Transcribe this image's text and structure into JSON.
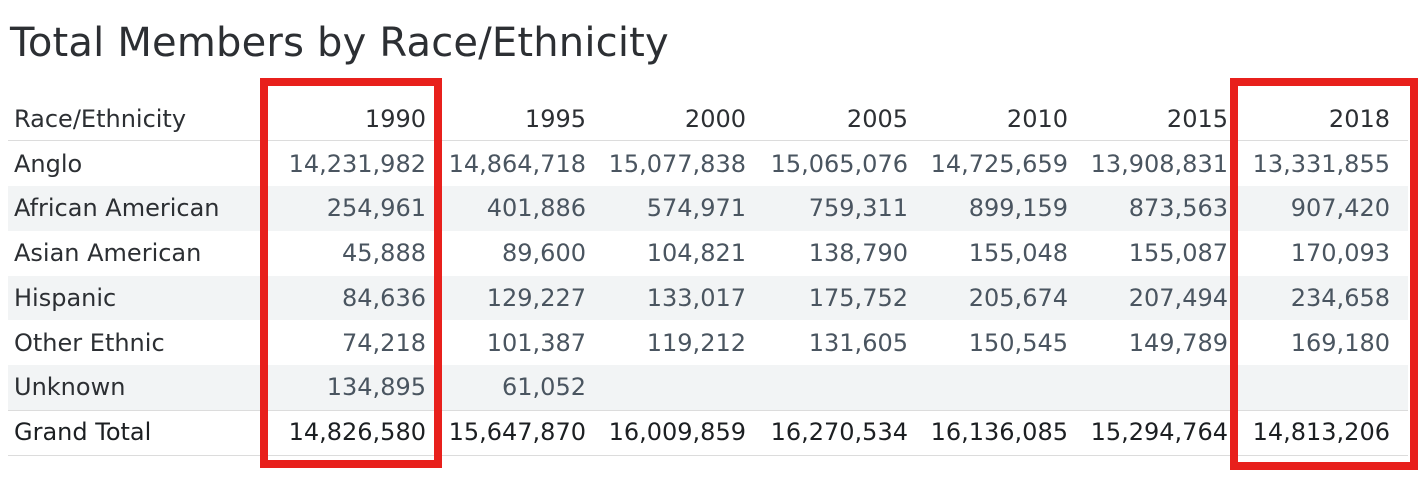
{
  "chart_data": {
    "type": "table",
    "title": "Total Members by Race/Ethnicity",
    "row_header_label": "Race/Ethnicity",
    "columns": [
      "1990",
      "1995",
      "2000",
      "2005",
      "2010",
      "2015",
      "2018"
    ],
    "rows": [
      {
        "label": "Anglo",
        "values": [
          "14,231,982",
          "14,864,718",
          "15,077,838",
          "15,065,076",
          "14,725,659",
          "13,908,831",
          "13,331,855"
        ]
      },
      {
        "label": "African American",
        "values": [
          "254,961",
          "401,886",
          "574,971",
          "759,311",
          "899,159",
          "873,563",
          "907,420"
        ]
      },
      {
        "label": "Asian American",
        "values": [
          "45,888",
          "89,600",
          "104,821",
          "138,790",
          "155,048",
          "155,087",
          "170,093"
        ]
      },
      {
        "label": "Hispanic",
        "values": [
          "84,636",
          "129,227",
          "133,017",
          "175,752",
          "205,674",
          "207,494",
          "234,658"
        ]
      },
      {
        "label": "Other Ethnic",
        "values": [
          "74,218",
          "101,387",
          "119,212",
          "131,605",
          "150,545",
          "149,789",
          "169,180"
        ]
      },
      {
        "label": "Unknown",
        "values": [
          "134,895",
          "61,052",
          "",
          "",
          "",
          "",
          ""
        ]
      }
    ],
    "total_row": {
      "label": "Grand Total",
      "values": [
        "14,826,580",
        "15,647,870",
        "16,009,859",
        "16,270,534",
        "16,136,085",
        "15,294,764",
        "14,813,206"
      ]
    },
    "highlighted_columns": [
      "1990",
      "2018"
    ],
    "highlight_color": "#e8201c",
    "band_color": "#f2f4f5"
  }
}
